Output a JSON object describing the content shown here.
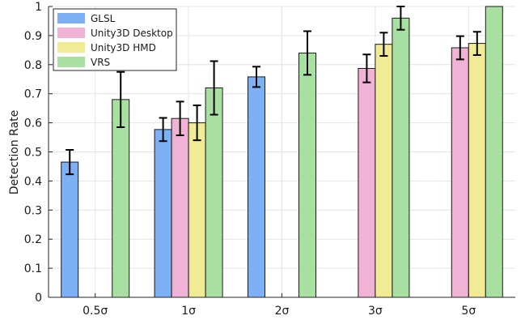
{
  "chart_data": {
    "type": "bar",
    "categories": [
      "0.5σ",
      "1σ",
      "2σ",
      "3σ",
      "5σ"
    ],
    "ylabel": "Detection Rate",
    "xlabel": "",
    "ylim": [
      0,
      1
    ],
    "yticks": [
      0,
      0.1,
      0.2,
      0.3,
      0.4,
      0.5,
      0.6,
      0.7,
      0.8,
      0.9,
      1
    ],
    "ytick_labels": [
      "0",
      "0.1",
      "0.2",
      "0.3",
      "0.4",
      "0.5",
      "0.6",
      "0.7",
      "0.8",
      "0.9",
      "1"
    ],
    "grid": true,
    "legend_position": "top-left",
    "series": [
      {
        "name": "GLSL",
        "color": "#7eb0f5",
        "values": [
          0.465,
          0.577,
          0.758,
          null,
          null
        ],
        "errors": [
          0.042,
          0.04,
          0.035,
          null,
          null
        ]
      },
      {
        "name": "Unity3D Desktop",
        "color": "#f0b3d6",
        "values": [
          null,
          0.615,
          null,
          0.787,
          0.858
        ],
        "errors": [
          null,
          0.058,
          null,
          0.048,
          0.04
        ]
      },
      {
        "name": "Unity3D HMD",
        "color": "#f2eb96",
        "values": [
          null,
          0.6,
          null,
          0.87,
          0.873
        ],
        "errors": [
          null,
          0.06,
          null,
          0.04,
          0.04
        ]
      },
      {
        "name": "VRS",
        "color": "#a8e0a2",
        "values": [
          0.68,
          0.72,
          0.84,
          0.96,
          1.0
        ],
        "errors": [
          0.095,
          0.092,
          0.075,
          0.04,
          0.0
        ]
      }
    ]
  }
}
